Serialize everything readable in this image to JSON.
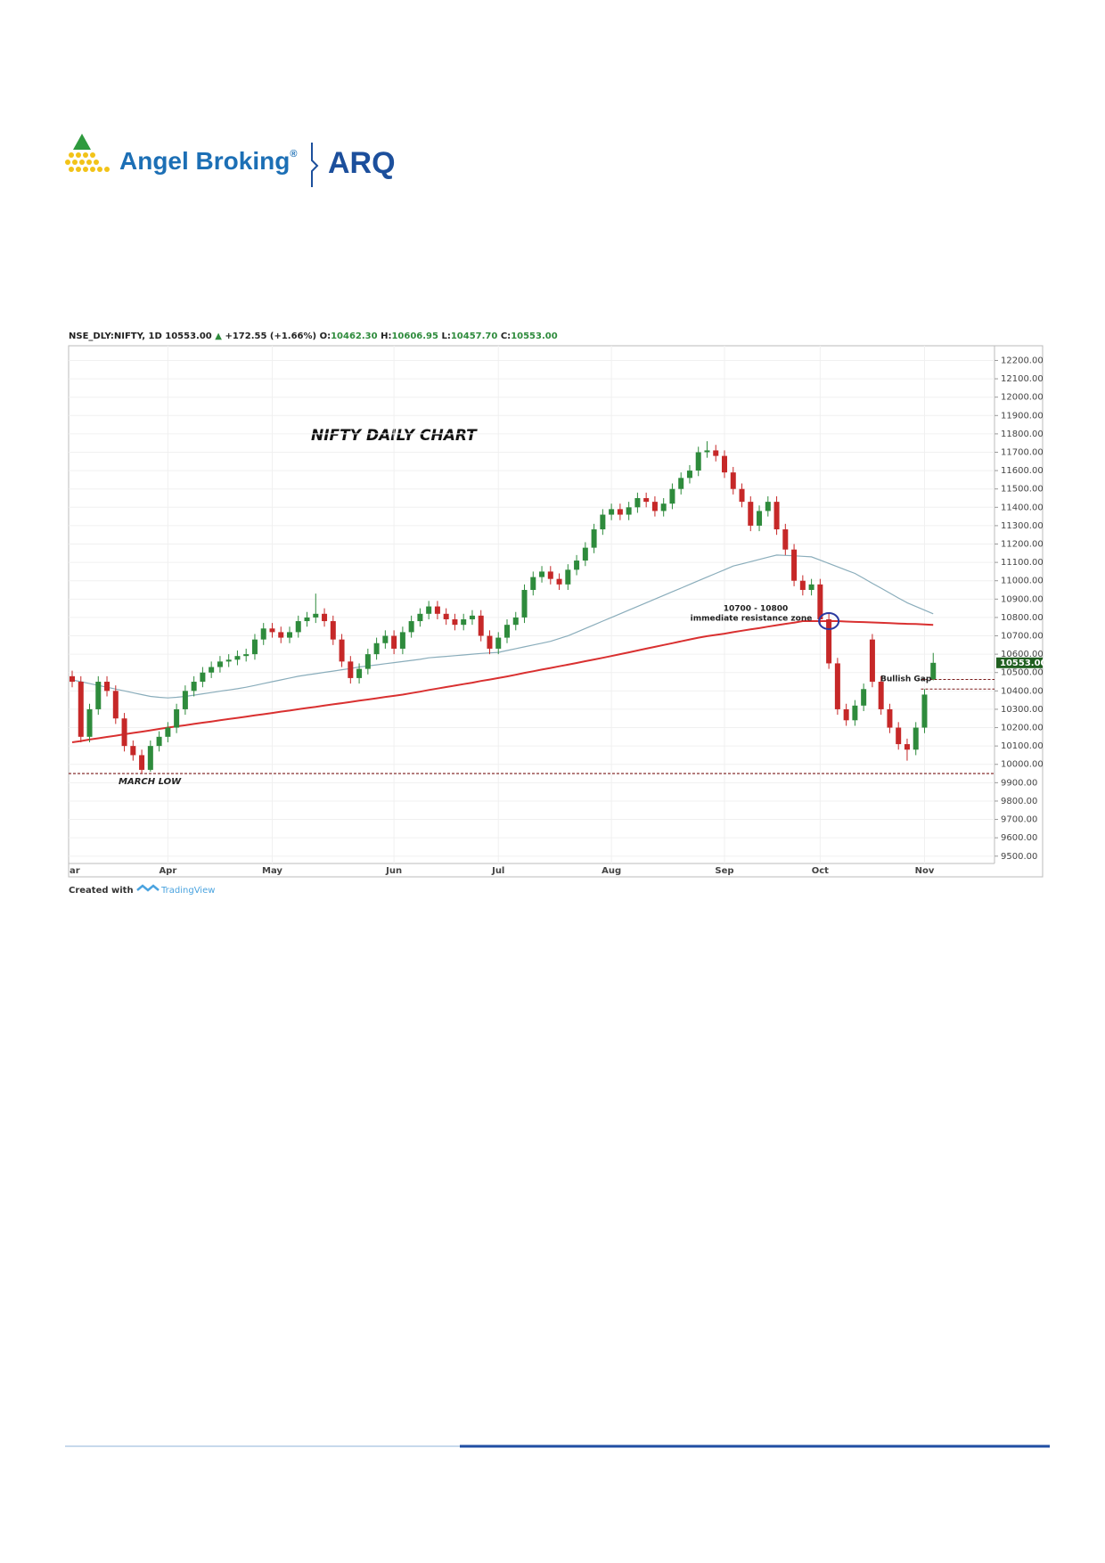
{
  "logo": {
    "brand": "Angel Broking",
    "reg": "®",
    "product": "ARQ"
  },
  "chart_data": {
    "type": "candlestick",
    "header": {
      "symbol": "NSE_DLY:NIFTY, 1D",
      "last": "10553.00",
      "arrow": "▲",
      "change": "+172.55 (+1.66%)",
      "o_label": "O:",
      "o": "10462.30",
      "h_label": "H:",
      "h": "10606.95",
      "l_label": "L:",
      "l": "10457.70",
      "c_label": "C:",
      "c": "10553.00"
    },
    "title": "NIFTY DAILY CHART",
    "categories": [
      "ar",
      null,
      null,
      null,
      null,
      null,
      null,
      null,
      null,
      null,
      null,
      "Apr",
      null,
      null,
      null,
      null,
      null,
      null,
      null,
      null,
      null,
      null,
      null,
      "May",
      null,
      null,
      null,
      null,
      null,
      null,
      null,
      null,
      null,
      null,
      null,
      null,
      null,
      "Jun",
      null,
      null,
      null,
      null,
      null,
      null,
      null,
      null,
      null,
      null,
      null,
      "Jul",
      null,
      null,
      null,
      null,
      null,
      null,
      null,
      null,
      null,
      null,
      null,
      null,
      "Aug",
      null,
      null,
      null,
      null,
      null,
      null,
      null,
      null,
      null,
      null,
      null,
      null,
      "Sep",
      null,
      null,
      null,
      null,
      null,
      null,
      null,
      null,
      null,
      null,
      "Oct",
      null,
      null,
      null,
      null,
      null,
      null,
      null,
      null,
      null,
      null,
      null,
      "Nov",
      null
    ],
    "open": [
      10480,
      10450,
      10150,
      10300,
      10450,
      10400,
      10250,
      10100,
      10050,
      9970,
      10100,
      10150,
      10200,
      10300,
      10400,
      10450,
      10500,
      10530,
      10560,
      10570,
      10590,
      10600,
      10680,
      10740,
      10720,
      10690,
      10720,
      10780,
      10800,
      10820,
      10780,
      10680,
      10560,
      10470,
      10520,
      10600,
      10660,
      10700,
      10630,
      10720,
      10780,
      10820,
      10860,
      10820,
      10790,
      10760,
      10790,
      10810,
      10700,
      10630,
      10690,
      10760,
      10800,
      10950,
      11020,
      11050,
      11010,
      10980,
      11060,
      11110,
      11180,
      11280,
      11360,
      11390,
      11360,
      11400,
      11450,
      11430,
      11380,
      11420,
      11500,
      11560,
      11600,
      11700,
      11710,
      11680,
      11590,
      11500,
      11430,
      11300,
      11380,
      11430,
      11280,
      11170,
      11000,
      10950,
      10980,
      10790,
      10550,
      10300,
      10240,
      10320,
      10680,
      10450,
      10300,
      10200,
      10110,
      10080,
      10200,
      10462.3
    ],
    "high": [
      10510,
      10480,
      10330,
      10480,
      10480,
      10430,
      10280,
      10130,
      10080,
      10130,
      10180,
      10230,
      10330,
      10430,
      10480,
      10530,
      10560,
      10590,
      10600,
      10620,
      10630,
      10710,
      10770,
      10770,
      10750,
      10750,
      10810,
      10830,
      10930,
      10850,
      10810,
      10710,
      10590,
      10550,
      10630,
      10690,
      10730,
      10730,
      10750,
      10810,
      10850,
      10890,
      10890,
      10850,
      10820,
      10820,
      10840,
      10840,
      10730,
      10720,
      10790,
      10830,
      10980,
      11050,
      11080,
      11080,
      11040,
      11090,
      11140,
      11210,
      11310,
      11390,
      11420,
      11420,
      11430,
      11480,
      11480,
      11460,
      11450,
      11530,
      11590,
      11630,
      11730,
      11760,
      11740,
      11710,
      11620,
      11530,
      11460,
      11410,
      11460,
      11460,
      11310,
      11200,
      11030,
      11010,
      11010,
      10820,
      10580,
      10330,
      10350,
      10440,
      10710,
      10480,
      10330,
      10230,
      10140,
      10230,
      10410,
      10606.95
    ],
    "low": [
      10420,
      10120,
      10120,
      10270,
      10370,
      10220,
      10070,
      10020,
      9950,
      9960,
      10070,
      10120,
      10170,
      10270,
      10370,
      10420,
      10470,
      10500,
      10530,
      10540,
      10560,
      10570,
      10650,
      10690,
      10660,
      10660,
      10690,
      10750,
      10770,
      10750,
      10650,
      10530,
      10440,
      10440,
      10490,
      10570,
      10630,
      10600,
      10600,
      10690,
      10750,
      10790,
      10790,
      10760,
      10730,
      10730,
      10760,
      10670,
      10600,
      10600,
      10660,
      10730,
      10770,
      10920,
      10990,
      10980,
      10950,
      10950,
      11030,
      11080,
      11150,
      11250,
      11330,
      11330,
      11330,
      11370,
      11400,
      11350,
      11350,
      11390,
      11470,
      11530,
      11570,
      11670,
      11650,
      11560,
      11470,
      11400,
      11270,
      11270,
      11350,
      11250,
      11140,
      10970,
      10920,
      10920,
      10760,
      10520,
      10270,
      10210,
      10210,
      10290,
      10420,
      10270,
      10170,
      10080,
      10020,
      10050,
      10170,
      10457.7
    ],
    "close": [
      10450,
      10150,
      10300,
      10450,
      10400,
      10250,
      10100,
      10050,
      9970,
      10100,
      10150,
      10200,
      10300,
      10400,
      10450,
      10500,
      10530,
      10560,
      10570,
      10590,
      10600,
      10680,
      10740,
      10720,
      10690,
      10720,
      10780,
      10800,
      10820,
      10780,
      10680,
      10560,
      10470,
      10520,
      10600,
      10660,
      10700,
      10630,
      10720,
      10780,
      10820,
      10860,
      10820,
      10790,
      10760,
      10790,
      10810,
      10700,
      10630,
      10690,
      10760,
      10800,
      10950,
      11020,
      11050,
      11010,
      10980,
      11060,
      11110,
      11180,
      11280,
      11360,
      11390,
      11360,
      11400,
      11450,
      11430,
      11380,
      11420,
      11500,
      11560,
      11600,
      11700,
      11710,
      11680,
      11590,
      11500,
      11430,
      11300,
      11380,
      11430,
      11280,
      11170,
      11000,
      10950,
      10980,
      10790,
      10550,
      10300,
      10240,
      10320,
      10410,
      10450,
      10300,
      10200,
      10110,
      10080,
      10200,
      10380,
      10553
    ],
    "up_color": "#2e8b3c",
    "down_color": "#c62828",
    "lines": [
      {
        "color": "#8aadbb",
        "values": [
          10460,
          10450,
          10440,
          10430,
          10420,
          10410,
          10400,
          10390,
          10380,
          10370,
          10365,
          10362,
          10365,
          10370,
          10377,
          10384,
          10391,
          10398,
          10405,
          10412,
          10420,
          10430,
          10440,
          10450,
          10460,
          10470,
          10480,
          10487,
          10494,
          10501,
          10508,
          10515,
          10522,
          10530,
          10536,
          10542,
          10548,
          10554,
          10560,
          10566,
          10572,
          10580,
          10584,
          10588,
          10592,
          10596,
          10600,
          10604,
          10607,
          10610,
          10620,
          10630,
          10640,
          10650,
          10660,
          10670,
          10685,
          10700,
          10720,
          10740,
          10760,
          10780,
          10800,
          10820,
          10840,
          10860,
          10880,
          10900,
          10920,
          10940,
          10960,
          10980,
          11000,
          11020,
          11040,
          11060,
          11080,
          11092,
          11104,
          11116,
          11128,
          11140,
          11138,
          11136,
          11133,
          11130,
          11112,
          11094,
          11076,
          11058,
          11040,
          11013,
          10986,
          10960,
          10933,
          10906,
          10880,
          10860,
          10840,
          10820
        ]
      },
      {
        "color": "#d93030",
        "values": [
          10120,
          10127,
          10135,
          10142,
          10149,
          10156,
          10164,
          10171,
          10178,
          10185,
          10193,
          10200,
          10207,
          10213,
          10220,
          10227,
          10233,
          10240,
          10247,
          10253,
          10260,
          10267,
          10273,
          10280,
          10287,
          10293,
          10300,
          10307,
          10313,
          10320,
          10327,
          10333,
          10340,
          10347,
          10353,
          10360,
          10367,
          10373,
          10380,
          10388,
          10396,
          10405,
          10413,
          10421,
          10429,
          10437,
          10445,
          10454,
          10462,
          10470,
          10479,
          10488,
          10498,
          10507,
          10516,
          10525,
          10534,
          10543,
          10552,
          10562,
          10571,
          10580,
          10590,
          10600,
          10610,
          10620,
          10630,
          10640,
          10650,
          10660,
          10670,
          10680,
          10690,
          10698,
          10705,
          10712,
          10720,
          10728,
          10735,
          10742,
          10750,
          10758,
          10765,
          10772,
          10780,
          10780,
          10780,
          10780,
          10780,
          10778,
          10776,
          10775,
          10773,
          10771,
          10769,
          10767,
          10765,
          10764,
          10762,
          10760
        ]
      }
    ],
    "ylim": [
      9460,
      12280
    ],
    "yticks": [
      {
        "value": 9500,
        "label": "9500.00"
      },
      {
        "value": 9600,
        "label": "9600.00"
      },
      {
        "value": 9700,
        "label": "9700.00"
      },
      {
        "value": 9800,
        "label": "9800.00"
      },
      {
        "value": 9900,
        "label": "9900.00"
      },
      {
        "value": 10000,
        "label": "10000.00"
      },
      {
        "value": 10100,
        "label": "10100.00"
      },
      {
        "value": 10200,
        "label": "10200.00"
      },
      {
        "value": 10300,
        "label": "10300.00"
      },
      {
        "value": 10400,
        "label": "10400.00"
      },
      {
        "value": 10500,
        "label": "10500.00"
      },
      {
        "value": 10600,
        "label": "10600.00"
      },
      {
        "value": 10700,
        "label": "10700.00"
      },
      {
        "value": 10800,
        "label": "10800.00"
      },
      {
        "value": 10900,
        "label": "10900.00"
      },
      {
        "value": 11000,
        "label": "11000.00"
      },
      {
        "value": 11100,
        "label": "11100.00"
      },
      {
        "value": 11200,
        "label": "11200.00"
      },
      {
        "value": 11300,
        "label": "11300.00"
      },
      {
        "value": 11400,
        "label": "11400.00"
      },
      {
        "value": 11500,
        "label": "11500.00"
      },
      {
        "value": 11600,
        "label": "11600.00"
      },
      {
        "value": 11700,
        "label": "11700.00"
      },
      {
        "value": 11800,
        "label": "11800.00"
      },
      {
        "value": 11900,
        "label": "11900.00"
      },
      {
        "value": 12000,
        "label": "12000.00"
      },
      {
        "value": 12100,
        "label": "12100.00"
      },
      {
        "value": 12200,
        "label": "12200.00"
      }
    ],
    "last_price": {
      "value": 10553,
      "label": "10553.00"
    },
    "annotations": {
      "resistance_range": "10700 - 10800",
      "resistance_text": "immediate resistance zone",
      "bullish_gap": "Bullish Gap",
      "march_low": "MARCH LOW",
      "march_low_value": 9950
    },
    "grid": true
  },
  "footer": {
    "created_with": "Created with",
    "tradingview": "TradingView"
  }
}
